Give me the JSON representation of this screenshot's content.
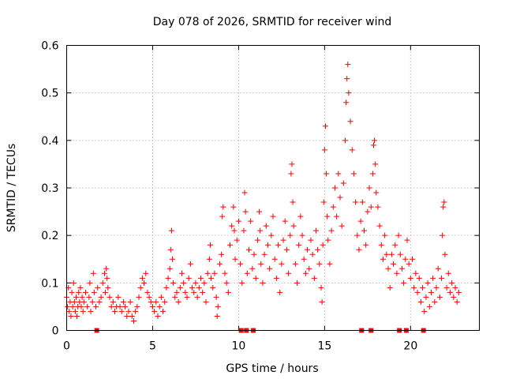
{
  "chart_data": {
    "type": "scatter",
    "title": "Day 078 of 2026, SRMTID for receiver wind",
    "xlabel": "GPS time / hours",
    "ylabel": "SRMTID / TECUs",
    "xlim": [
      0,
      24
    ],
    "ylim": [
      0,
      0.6
    ],
    "xticks": [
      0,
      5,
      10,
      15,
      20
    ],
    "yticks": [
      0,
      0.1,
      0.2,
      0.3,
      0.4,
      0.5,
      0.6
    ],
    "xtick_labels": [
      "0",
      "5",
      "10",
      "15",
      "20"
    ],
    "ytick_labels": [
      "0",
      "0.1",
      "0.2",
      "0.3",
      "0.4",
      "0.5",
      "0.6"
    ],
    "grid": true,
    "marker": "plus",
    "color": "#ff0000",
    "data_gap_markers": {
      "y": 0,
      "x": [
        1.75,
        10.15,
        10.45,
        10.85,
        17.15,
        17.7,
        19.35,
        19.75,
        20.75
      ]
    },
    "series": [
      {
        "name": "SRMTID",
        "points": [
          [
            0.0,
            0.07
          ],
          [
            0.05,
            0.05
          ],
          [
            0.1,
            0.09
          ],
          [
            0.15,
            0.04
          ],
          [
            0.2,
            0.06
          ],
          [
            0.25,
            0.03
          ],
          [
            0.3,
            0.08
          ],
          [
            0.35,
            0.05
          ],
          [
            0.4,
            0.1
          ],
          [
            0.45,
            0.06
          ],
          [
            0.5,
            0.04
          ],
          [
            0.55,
            0.07
          ],
          [
            0.6,
            0.03
          ],
          [
            0.65,
            0.05
          ],
          [
            0.7,
            0.08
          ],
          [
            0.75,
            0.06
          ],
          [
            0.8,
            0.09
          ],
          [
            0.85,
            0.05
          ],
          [
            0.9,
            0.07
          ],
          [
            0.95,
            0.04
          ],
          [
            1.0,
            0.06
          ],
          [
            1.1,
            0.08
          ],
          [
            1.2,
            0.05
          ],
          [
            1.3,
            0.07
          ],
          [
            1.35,
            0.1
          ],
          [
            1.4,
            0.04
          ],
          [
            1.5,
            0.06
          ],
          [
            1.55,
            0.12
          ],
          [
            1.6,
            0.08
          ],
          [
            1.7,
            0.05
          ],
          [
            1.8,
            0.09
          ],
          [
            1.9,
            0.06
          ],
          [
            2.0,
            0.07
          ],
          [
            2.1,
            0.1
          ],
          [
            2.2,
            0.12
          ],
          [
            2.25,
            0.08
          ],
          [
            2.3,
            0.13
          ],
          [
            2.35,
            0.11
          ],
          [
            2.4,
            0.09
          ],
          [
            2.5,
            0.07
          ],
          [
            2.6,
            0.05
          ],
          [
            2.7,
            0.06
          ],
          [
            2.8,
            0.04
          ],
          [
            2.9,
            0.05
          ],
          [
            3.0,
            0.07
          ],
          [
            3.1,
            0.05
          ],
          [
            3.2,
            0.04
          ],
          [
            3.3,
            0.06
          ],
          [
            3.4,
            0.05
          ],
          [
            3.5,
            0.03
          ],
          [
            3.6,
            0.04
          ],
          [
            3.7,
            0.06
          ],
          [
            3.8,
            0.03
          ],
          [
            3.9,
            0.02
          ],
          [
            4.0,
            0.04
          ],
          [
            4.1,
            0.05
          ],
          [
            4.2,
            0.07
          ],
          [
            4.3,
            0.09
          ],
          [
            4.4,
            0.11
          ],
          [
            4.5,
            0.1
          ],
          [
            4.6,
            0.12
          ],
          [
            4.7,
            0.08
          ],
          [
            4.8,
            0.07
          ],
          [
            4.9,
            0.06
          ],
          [
            5.0,
            0.05
          ],
          [
            5.1,
            0.04
          ],
          [
            5.2,
            0.06
          ],
          [
            5.3,
            0.03
          ],
          [
            5.4,
            0.05
          ],
          [
            5.5,
            0.07
          ],
          [
            5.6,
            0.04
          ],
          [
            5.7,
            0.06
          ],
          [
            5.8,
            0.09
          ],
          [
            5.9,
            0.11
          ],
          [
            6.0,
            0.13
          ],
          [
            6.05,
            0.17
          ],
          [
            6.1,
            0.21
          ],
          [
            6.15,
            0.15
          ],
          [
            6.2,
            0.1
          ],
          [
            6.3,
            0.07
          ],
          [
            6.4,
            0.08
          ],
          [
            6.5,
            0.06
          ],
          [
            6.6,
            0.09
          ],
          [
            6.7,
            0.12
          ],
          [
            6.8,
            0.1
          ],
          [
            6.9,
            0.08
          ],
          [
            7.0,
            0.07
          ],
          [
            7.1,
            0.11
          ],
          [
            7.2,
            0.14
          ],
          [
            7.3,
            0.09
          ],
          [
            7.4,
            0.08
          ],
          [
            7.5,
            0.1
          ],
          [
            7.6,
            0.07
          ],
          [
            7.7,
            0.09
          ],
          [
            7.8,
            0.11
          ],
          [
            7.9,
            0.08
          ],
          [
            8.0,
            0.1
          ],
          [
            8.1,
            0.06
          ],
          [
            8.2,
            0.12
          ],
          [
            8.3,
            0.15
          ],
          [
            8.35,
            0.18
          ],
          [
            8.4,
            0.11
          ],
          [
            8.5,
            0.09
          ],
          [
            8.6,
            0.12
          ],
          [
            8.7,
            0.07
          ],
          [
            8.75,
            0.03
          ],
          [
            8.8,
            0.05
          ],
          [
            8.9,
            0.14
          ],
          [
            9.0,
            0.16
          ],
          [
            9.05,
            0.24
          ],
          [
            9.1,
            0.26
          ],
          [
            9.2,
            0.12
          ],
          [
            9.3,
            0.1
          ],
          [
            9.4,
            0.08
          ],
          [
            9.5,
            0.18
          ],
          [
            9.6,
            0.22
          ],
          [
            9.7,
            0.26
          ],
          [
            9.75,
            0.21
          ],
          [
            9.8,
            0.15
          ],
          [
            9.9,
            0.19
          ],
          [
            10.0,
            0.23
          ],
          [
            10.1,
            0.14
          ],
          [
            10.2,
            0.1
          ],
          [
            10.3,
            0.21
          ],
          [
            10.35,
            0.29
          ],
          [
            10.4,
            0.25
          ],
          [
            10.5,
            0.12
          ],
          [
            10.6,
            0.17
          ],
          [
            10.7,
            0.23
          ],
          [
            10.8,
            0.13
          ],
          [
            10.9,
            0.16
          ],
          [
            11.0,
            0.11
          ],
          [
            11.1,
            0.19
          ],
          [
            11.2,
            0.25
          ],
          [
            11.25,
            0.21
          ],
          [
            11.3,
            0.14
          ],
          [
            11.4,
            0.1
          ],
          [
            11.5,
            0.16
          ],
          [
            11.6,
            0.22
          ],
          [
            11.7,
            0.18
          ],
          [
            11.8,
            0.13
          ],
          [
            11.9,
            0.2
          ],
          [
            12.0,
            0.24
          ],
          [
            12.1,
            0.15
          ],
          [
            12.2,
            0.11
          ],
          [
            12.3,
            0.18
          ],
          [
            12.4,
            0.08
          ],
          [
            12.5,
            0.14
          ],
          [
            12.6,
            0.19
          ],
          [
            12.7,
            0.23
          ],
          [
            12.8,
            0.17
          ],
          [
            12.9,
            0.12
          ],
          [
            13.0,
            0.2
          ],
          [
            13.05,
            0.33
          ],
          [
            13.1,
            0.35
          ],
          [
            13.15,
            0.27
          ],
          [
            13.2,
            0.22
          ],
          [
            13.3,
            0.14
          ],
          [
            13.4,
            0.1
          ],
          [
            13.5,
            0.18
          ],
          [
            13.6,
            0.24
          ],
          [
            13.7,
            0.2
          ],
          [
            13.8,
            0.15
          ],
          [
            13.9,
            0.12
          ],
          [
            14.0,
            0.17
          ],
          [
            14.1,
            0.13
          ],
          [
            14.2,
            0.19
          ],
          [
            14.3,
            0.16
          ],
          [
            14.4,
            0.11
          ],
          [
            14.5,
            0.21
          ],
          [
            14.6,
            0.17
          ],
          [
            14.7,
            0.14
          ],
          [
            14.8,
            0.09
          ],
          [
            14.85,
            0.06
          ],
          [
            14.9,
            0.18
          ],
          [
            14.95,
            0.27
          ],
          [
            15.0,
            0.38
          ],
          [
            15.05,
            0.43
          ],
          [
            15.1,
            0.33
          ],
          [
            15.15,
            0.24
          ],
          [
            15.2,
            0.19
          ],
          [
            15.3,
            0.14
          ],
          [
            15.4,
            0.21
          ],
          [
            15.5,
            0.26
          ],
          [
            15.6,
            0.3
          ],
          [
            15.7,
            0.24
          ],
          [
            15.8,
            0.33
          ],
          [
            15.9,
            0.28
          ],
          [
            16.0,
            0.22
          ],
          [
            16.1,
            0.31
          ],
          [
            16.2,
            0.4
          ],
          [
            16.25,
            0.48
          ],
          [
            16.3,
            0.53
          ],
          [
            16.35,
            0.56
          ],
          [
            16.4,
            0.5
          ],
          [
            16.5,
            0.44
          ],
          [
            16.6,
            0.38
          ],
          [
            16.7,
            0.33
          ],
          [
            16.8,
            0.27
          ],
          [
            16.9,
            0.2
          ],
          [
            17.0,
            0.17
          ],
          [
            17.1,
            0.23
          ],
          [
            17.2,
            0.27
          ],
          [
            17.3,
            0.21
          ],
          [
            17.4,
            0.18
          ],
          [
            17.5,
            0.25
          ],
          [
            17.6,
            0.3
          ],
          [
            17.7,
            0.26
          ],
          [
            17.8,
            0.33
          ],
          [
            17.85,
            0.39
          ],
          [
            17.9,
            0.4
          ],
          [
            17.95,
            0.35
          ],
          [
            18.0,
            0.29
          ],
          [
            18.1,
            0.26
          ],
          [
            18.2,
            0.22
          ],
          [
            18.3,
            0.18
          ],
          [
            18.4,
            0.15
          ],
          [
            18.5,
            0.2
          ],
          [
            18.6,
            0.16
          ],
          [
            18.7,
            0.13
          ],
          [
            18.8,
            0.09
          ],
          [
            18.9,
            0.16
          ],
          [
            19.0,
            0.14
          ],
          [
            19.1,
            0.18
          ],
          [
            19.2,
            0.12
          ],
          [
            19.3,
            0.2
          ],
          [
            19.4,
            0.16
          ],
          [
            19.5,
            0.13
          ],
          [
            19.6,
            0.1
          ],
          [
            19.7,
            0.15
          ],
          [
            19.8,
            0.19
          ],
          [
            19.9,
            0.14
          ],
          [
            20.0,
            0.11
          ],
          [
            20.1,
            0.15
          ],
          [
            20.2,
            0.09
          ],
          [
            20.3,
            0.12
          ],
          [
            20.4,
            0.08
          ],
          [
            20.5,
            0.11
          ],
          [
            20.6,
            0.06
          ],
          [
            20.7,
            0.09
          ],
          [
            20.8,
            0.04
          ],
          [
            20.9,
            0.07
          ],
          [
            21.0,
            0.1
          ],
          [
            21.1,
            0.05
          ],
          [
            21.2,
            0.08
          ],
          [
            21.3,
            0.11
          ],
          [
            21.4,
            0.06
          ],
          [
            21.5,
            0.09
          ],
          [
            21.6,
            0.13
          ],
          [
            21.7,
            0.07
          ],
          [
            21.8,
            0.11
          ],
          [
            21.85,
            0.2
          ],
          [
            21.9,
            0.26
          ],
          [
            21.95,
            0.27
          ],
          [
            22.0,
            0.16
          ],
          [
            22.1,
            0.09
          ],
          [
            22.2,
            0.12
          ],
          [
            22.3,
            0.08
          ],
          [
            22.4,
            0.1
          ],
          [
            22.5,
            0.07
          ],
          [
            22.6,
            0.09
          ],
          [
            22.7,
            0.06
          ],
          [
            22.8,
            0.08
          ]
        ]
      }
    ]
  }
}
